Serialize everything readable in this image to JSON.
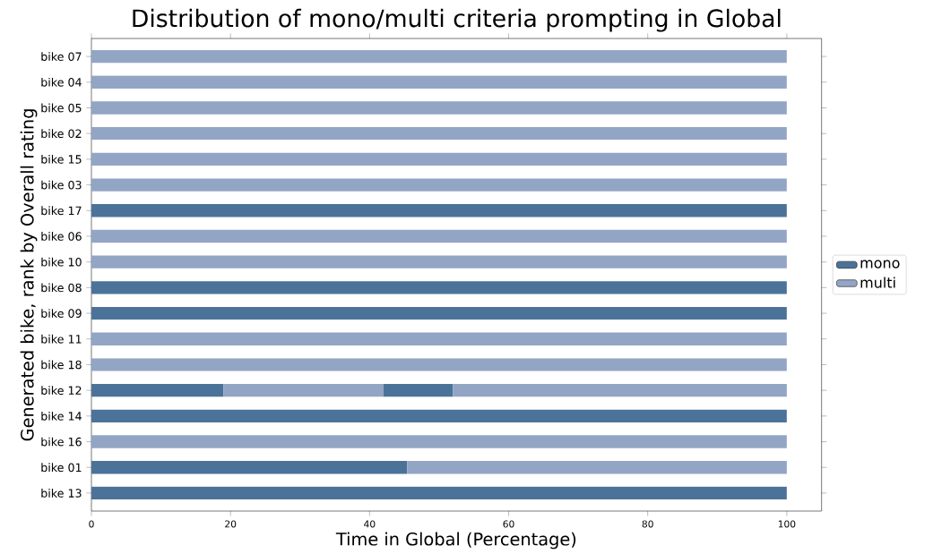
{
  "chart_data": {
    "type": "bar",
    "orientation": "horizontal",
    "stacked": true,
    "title": "Distribution of mono/multi criteria prompting in Global",
    "xlabel": "Time in Global (Percentage)",
    "ylabel": "Generated bike, rank by Overall rating",
    "categories": [
      "bike 07",
      "bike 04",
      "bike 05",
      "bike 02",
      "bike 15",
      "bike 03",
      "bike 17",
      "bike 06",
      "bike 10",
      "bike 08",
      "bike 09",
      "bike 11",
      "bike 18",
      "bike 12",
      "bike 14",
      "bike 16",
      "bike 01",
      "bike 13"
    ],
    "series": [
      {
        "name": "mono",
        "color": "#4b7399",
        "values": [
          null,
          null,
          null,
          null,
          null,
          null,
          100,
          null,
          null,
          100,
          100,
          null,
          null,
          19,
          100,
          null,
          45.4,
          100
        ]
      },
      {
        "name": "multi",
        "color": "#93a5c5",
        "values": [
          100,
          100,
          100,
          100,
          100,
          100,
          null,
          100,
          100,
          null,
          null,
          100,
          100,
          23,
          null,
          100,
          54.6,
          null
        ]
      },
      {
        "color": "#4b7399",
        "values": [
          null,
          null,
          null,
          null,
          null,
          null,
          null,
          null,
          null,
          null,
          null,
          null,
          null,
          10,
          null,
          null,
          null,
          null
        ]
      },
      {
        "color": "#93a5c5",
        "values": [
          null,
          null,
          null,
          null,
          null,
          null,
          null,
          null,
          null,
          null,
          null,
          null,
          null,
          48,
          null,
          null,
          null,
          null
        ]
      }
    ],
    "xlim": [
      0,
      105
    ],
    "xticks": [
      0,
      20,
      40,
      60,
      80,
      100
    ],
    "legend": "right"
  }
}
